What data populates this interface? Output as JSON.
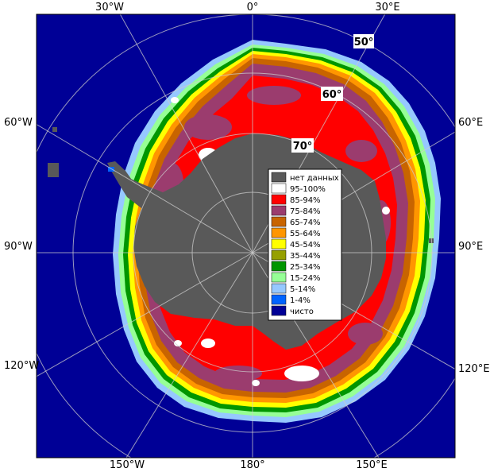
{
  "longitude_labels": {
    "top": [
      "30°W",
      "0°",
      "30°E"
    ],
    "left": [
      "60°W",
      "90°W",
      "120°W"
    ],
    "right": [
      "60°E",
      "90°E",
      "120°E"
    ],
    "bottom": [
      "150°W",
      "180°",
      "150°E"
    ]
  },
  "latitude_labels": [
    "50°",
    "60°",
    "70°"
  ],
  "legend": {
    "items": [
      {
        "label": "нет данных",
        "color": "#595959"
      },
      {
        "label": "95-100%",
        "color": "#ffffff"
      },
      {
        "label": "85-94%",
        "color": "#ff0000"
      },
      {
        "label": "75-84%",
        "color": "#9b3c6e"
      },
      {
        "label": "65-74%",
        "color": "#c86400"
      },
      {
        "label": "55-64%",
        "color": "#ff9600"
      },
      {
        "label": "45-54%",
        "color": "#ffff00"
      },
      {
        "label": "35-44%",
        "color": "#96a000"
      },
      {
        "label": "25-34%",
        "color": "#009600"
      },
      {
        "label": "15-24%",
        "color": "#96ff96"
      },
      {
        "label": "5-14%",
        "color": "#96c8ff"
      },
      {
        "label": "1-4%",
        "color": "#0064ff"
      },
      {
        "label": "чисто",
        "color": "#000096"
      }
    ]
  },
  "colors": {
    "ocean": "#000096",
    "land": "#595959",
    "frame": "#000000"
  }
}
